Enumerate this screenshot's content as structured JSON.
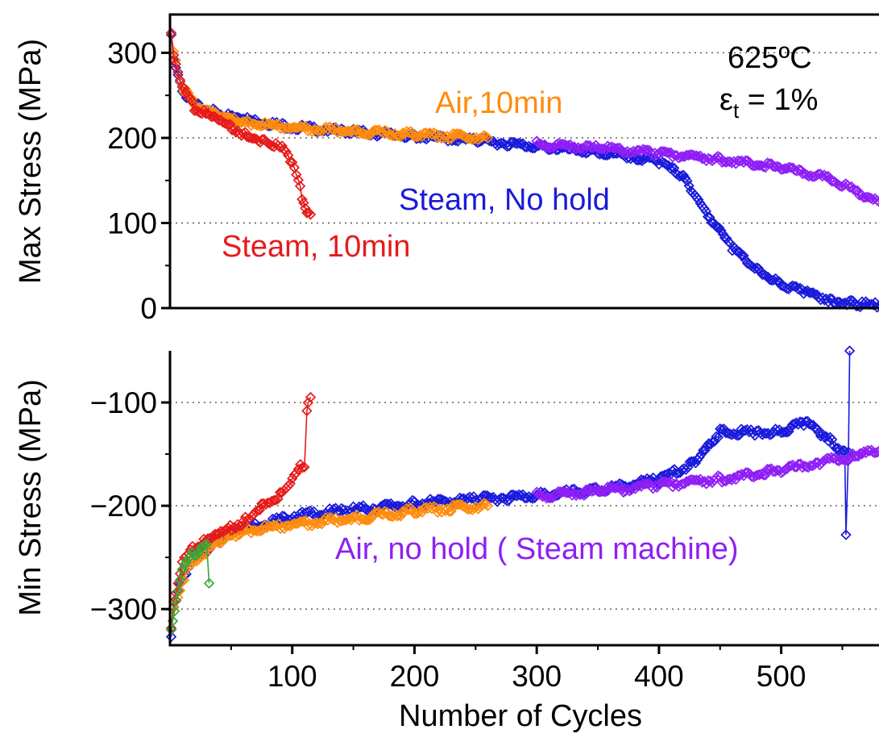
{
  "chart_data": [
    {
      "type": "line",
      "ylabel": "Max Stress (MPa)",
      "xlabel": "",
      "xlim": [
        0,
        580
      ],
      "ylim": [
        0,
        345
      ],
      "yticks": [
        "0",
        "100",
        "200",
        "300"
      ],
      "grid": true,
      "conditions": {
        "temperature": "625ºC",
        "strain_symbol": "ε",
        "strain_sub": "t",
        "strain_value": " = 1%"
      },
      "series": [
        {
          "name": "Steam, No hold",
          "color": "#1a1adb",
          "x": [
            1,
            3,
            10,
            20,
            40,
            60,
            100,
            150,
            200,
            250,
            300,
            350,
            380,
            400,
            420,
            440,
            460,
            480,
            500,
            520,
            540,
            560,
            580
          ],
          "y": [
            318,
            290,
            255,
            240,
            228,
            222,
            213,
            207,
            202,
            197,
            190,
            183,
            178,
            172,
            155,
            110,
            70,
            45,
            28,
            18,
            10,
            5,
            3
          ]
        },
        {
          "name": "Air, no hold ( Steam machine)",
          "color": "#8f1ff5",
          "x": [
            300,
            350,
            400,
            450,
            500,
            540,
            580
          ],
          "y": [
            193,
            188,
            182,
            175,
            165,
            152,
            125
          ]
        },
        {
          "name": "Air,10min",
          "color": "#ff8c0d",
          "x": [
            1,
            3,
            10,
            20,
            40,
            60,
            100,
            150,
            200,
            260
          ],
          "y": [
            320,
            300,
            260,
            240,
            225,
            218,
            212,
            208,
            204,
            200
          ]
        },
        {
          "name": "Steam, 10min",
          "color": "#e61a1a",
          "x": [
            1,
            3,
            10,
            20,
            40,
            60,
            80,
            95,
            100,
            105,
            108,
            112,
            115
          ],
          "y": [
            322,
            300,
            260,
            235,
            220,
            205,
            195,
            185,
            170,
            150,
            130,
            115,
            110
          ]
        }
      ],
      "annotations": [
        "Air,10min",
        "Steam, No hold",
        "Steam, 10min"
      ]
    },
    {
      "type": "line",
      "ylabel": "Min Stress (MPa)",
      "xlabel": "Number of Cycles",
      "xlim": [
        0,
        580
      ],
      "ylim": [
        -335,
        -50
      ],
      "xticks": [
        "100",
        "200",
        "300",
        "400",
        "500"
      ],
      "yticks": [
        "−300",
        "−200",
        "−100"
      ],
      "grid": true,
      "series": [
        {
          "name": "Steam, No hold",
          "color": "#1a1adb",
          "x": [
            1,
            3,
            10,
            20,
            40,
            60,
            100,
            150,
            200,
            250,
            300,
            350,
            400,
            430,
            450,
            480,
            500,
            520,
            540,
            548,
            552,
            553,
            555,
            556
          ],
          "y": [
            -330,
            -300,
            -270,
            -250,
            -232,
            -222,
            -210,
            -204,
            -198,
            -194,
            -190,
            -185,
            -175,
            -158,
            -128,
            -130,
            -128,
            -120,
            -135,
            -145,
            -150,
            -230,
            -150,
            -50
          ]
        },
        {
          "name": "Air, no hold ( Steam machine)",
          "color": "#8f1ff5",
          "x": [
            300,
            350,
            400,
            450,
            500,
            530,
            560,
            580
          ],
          "y": [
            -190,
            -186,
            -180,
            -174,
            -166,
            -158,
            -152,
            -147
          ]
        },
        {
          "name": "Air,10min",
          "color": "#ff8c0d",
          "x": [
            1,
            3,
            10,
            20,
            40,
            60,
            100,
            150,
            200,
            260
          ],
          "y": [
            -322,
            -300,
            -272,
            -252,
            -235,
            -225,
            -218,
            -212,
            -205,
            -200
          ]
        },
        {
          "name": "Steam, 10min",
          "color": "#e61a1a",
          "x": [
            1,
            3,
            10,
            20,
            40,
            60,
            75,
            90,
            100,
            105,
            110,
            112,
            113,
            115
          ],
          "y": [
            -320,
            -290,
            -255,
            -240,
            -228,
            -215,
            -200,
            -190,
            -175,
            -165,
            -160,
            -105,
            -100,
            -95
          ]
        },
        {
          "name": "",
          "color": "#3aa63a",
          "x": [
            1,
            5,
            10,
            20,
            25,
            30,
            32
          ],
          "y": [
            -320,
            -290,
            -262,
            -246,
            -242,
            -240,
            -275
          ]
        }
      ],
      "annotations": [
        "Air, no hold ( Steam machine)"
      ]
    }
  ]
}
